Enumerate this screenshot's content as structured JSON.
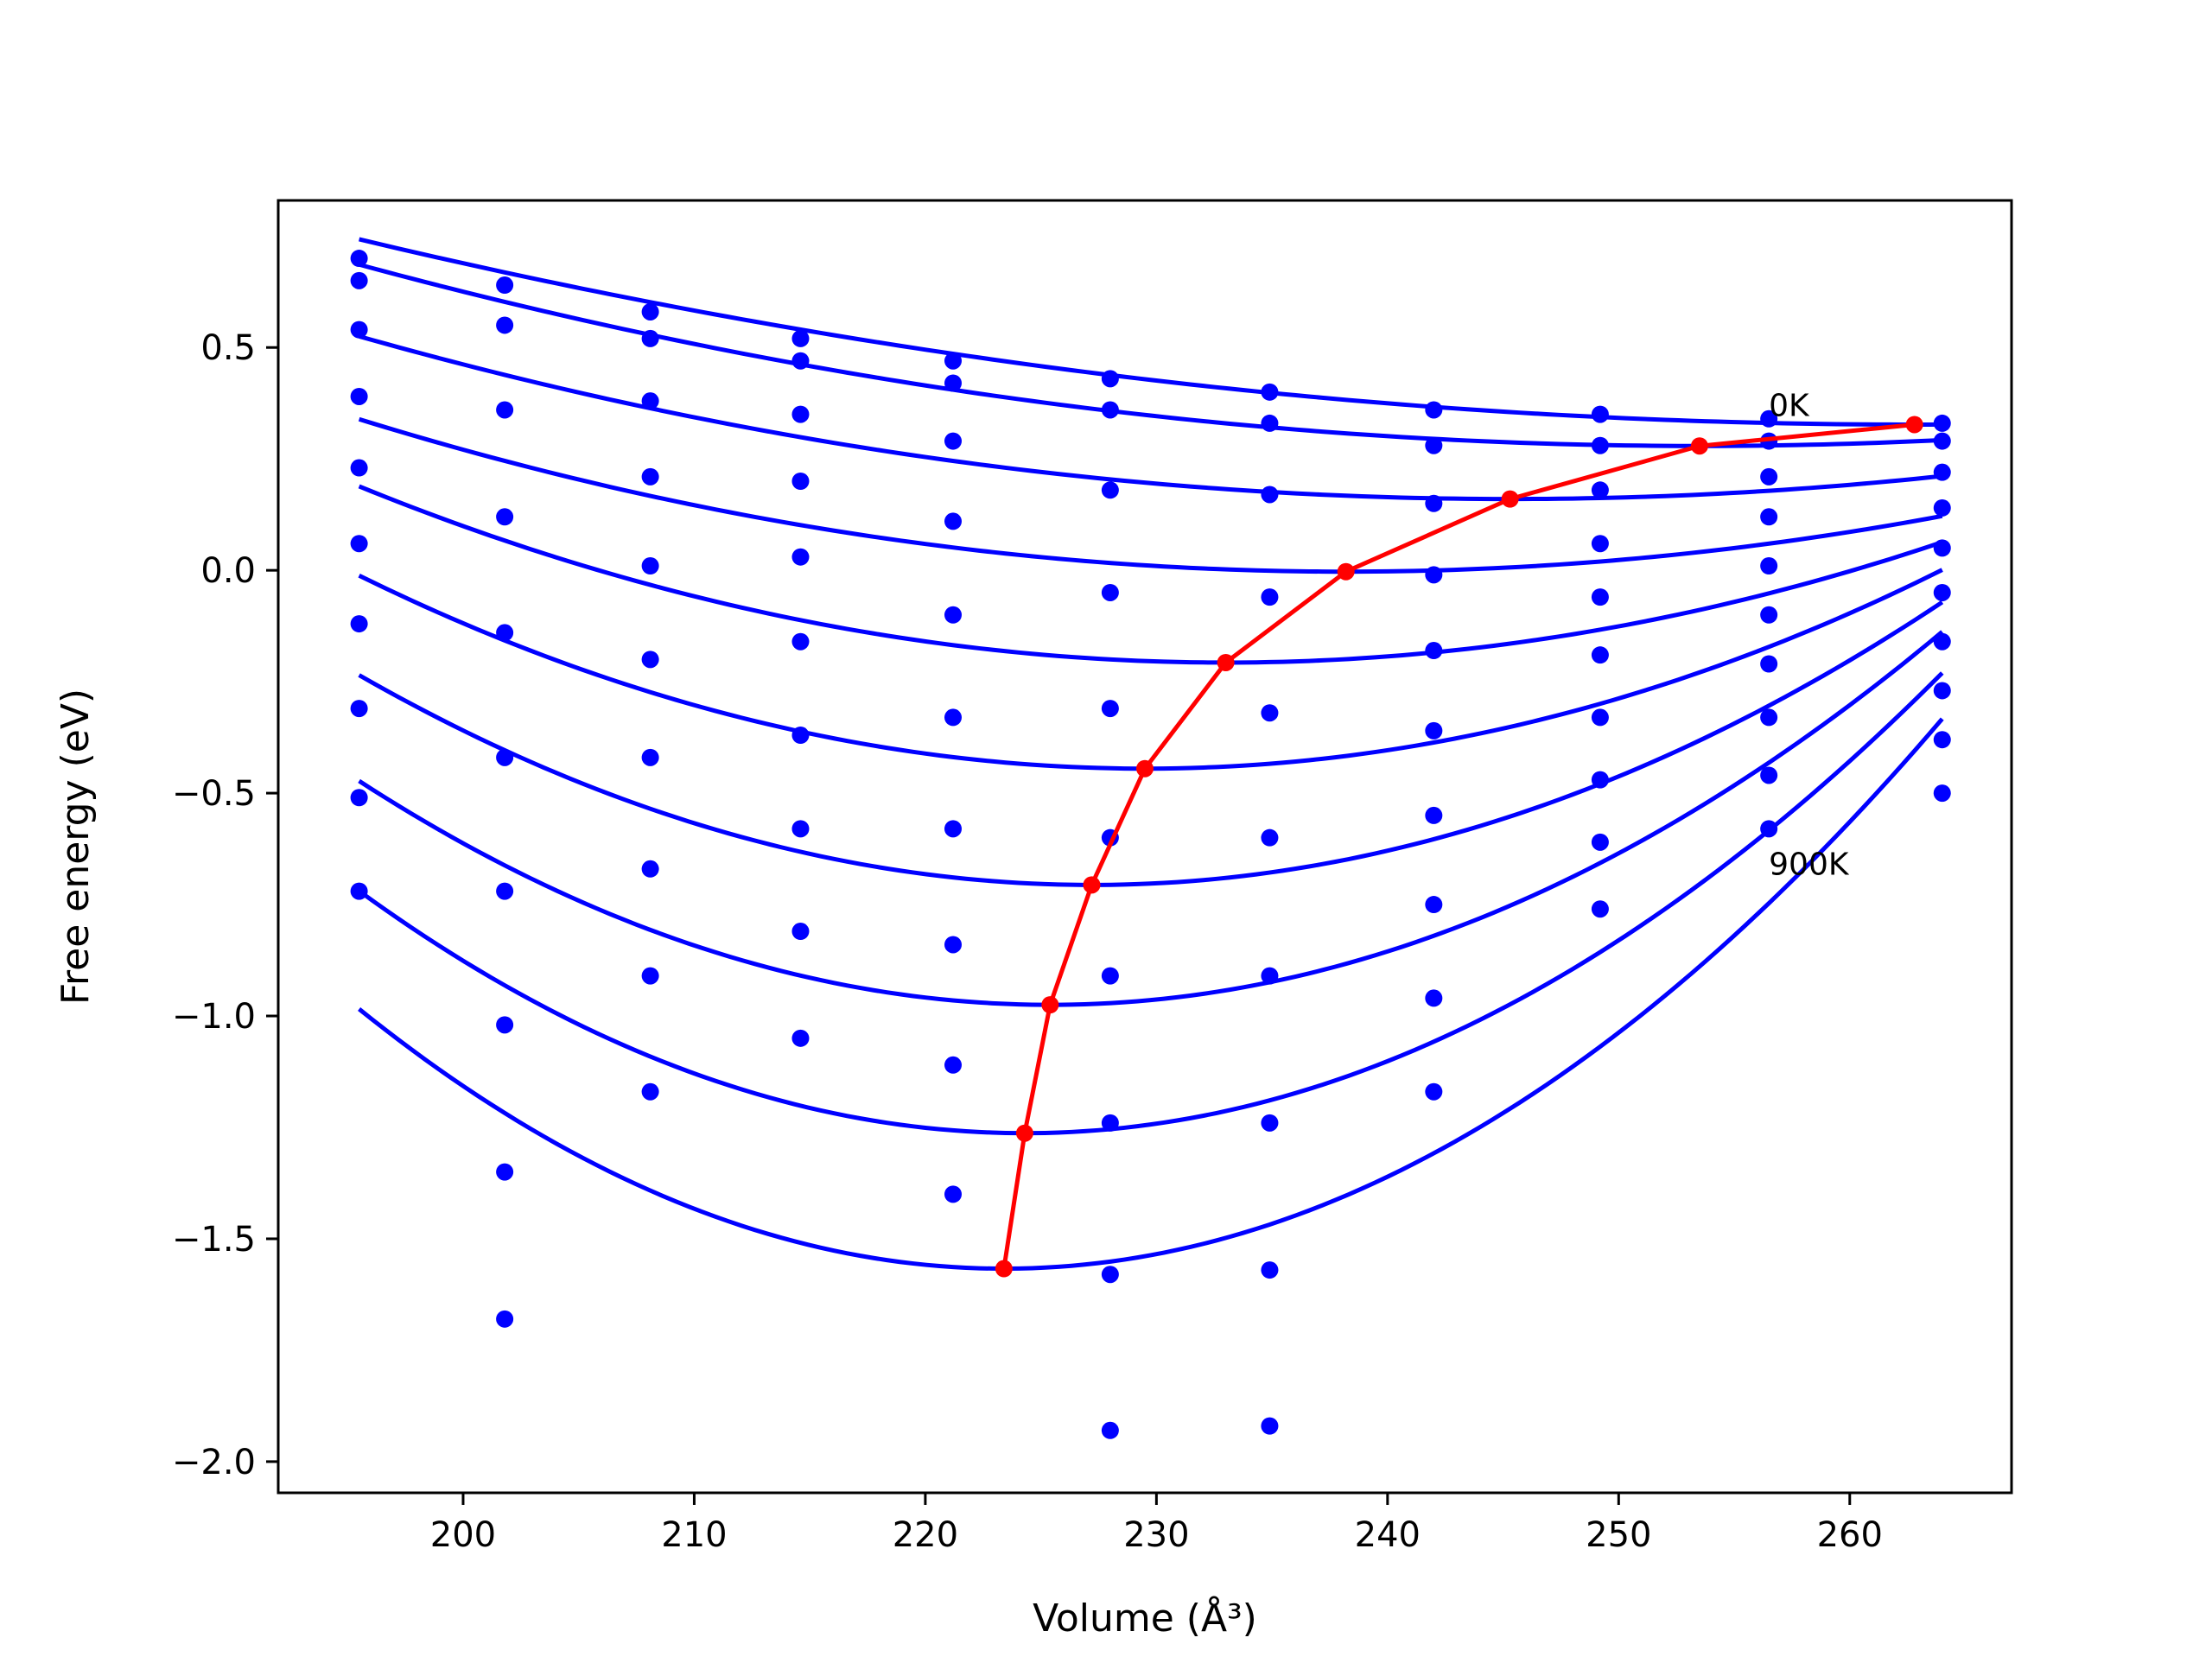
{
  "chart_data": {
    "type": "line",
    "xlabel": "Volume (Å³)",
    "ylabel": "Free energy (eV)",
    "xlim": [
      192,
      267
    ],
    "ylim": [
      -2.07,
      0.83
    ],
    "grid": false,
    "x_ticks": [
      {
        "value": 200,
        "label": "200"
      },
      {
        "value": 210,
        "label": "210"
      },
      {
        "value": 220,
        "label": "220"
      },
      {
        "value": 230,
        "label": "230"
      },
      {
        "value": 240,
        "label": "240"
      },
      {
        "value": 250,
        "label": "250"
      },
      {
        "value": 260,
        "label": "260"
      }
    ],
    "y_ticks": [
      {
        "value": 0.5,
        "label": "0.5"
      },
      {
        "value": 0.0,
        "label": "0.0"
      },
      {
        "value": -0.5,
        "label": "−0.5"
      },
      {
        "value": -1.0,
        "label": "−1.0"
      },
      {
        "value": -1.5,
        "label": "−1.5"
      },
      {
        "value": -2.0,
        "label": "−2.0"
      }
    ],
    "annotations": [
      {
        "text": "0K",
        "x": 256.5,
        "y": 0.37
      },
      {
        "text": "900K",
        "x": 256.5,
        "y": -0.66
      }
    ],
    "colors": {
      "fits": "#0000ff",
      "points": "#0000ff",
      "minimum_path": "#ff0000"
    },
    "volumes": [
      195.5,
      201.8,
      208.1,
      214.6,
      221.2,
      228.0,
      234.9,
      242.0,
      249.2,
      256.5,
      264.0
    ],
    "point_series": [
      [
        0.7,
        0.64,
        0.58,
        0.52,
        0.47,
        0.43,
        0.4,
        0.36,
        0.35,
        0.34,
        0.33
      ],
      [
        0.65,
        0.55,
        0.52,
        0.47,
        0.42,
        0.36,
        0.33,
        0.28,
        0.28,
        0.29,
        0.29
      ],
      [
        0.54,
        0.36,
        0.38,
        0.35,
        0.29,
        0.18,
        0.17,
        0.15,
        0.18,
        0.21,
        0.22
      ],
      [
        0.39,
        0.12,
        0.21,
        0.2,
        0.11,
        -0.05,
        -0.06,
        -0.01,
        0.06,
        0.12,
        0.14
      ],
      [
        0.23,
        -0.14,
        0.01,
        0.03,
        -0.1,
        -0.31,
        -0.32,
        -0.18,
        -0.06,
        0.01,
        0.05
      ],
      [
        0.06,
        -0.42,
        -0.2,
        -0.16,
        -0.33,
        -0.6,
        -0.6,
        -0.36,
        -0.19,
        -0.1,
        -0.05
      ],
      [
        -0.12,
        -0.72,
        -0.42,
        -0.37,
        -0.58,
        -0.91,
        -0.91,
        -0.55,
        -0.33,
        -0.21,
        -0.16
      ],
      [
        -0.31,
        -1.02,
        -0.67,
        -0.58,
        -0.84,
        -1.24,
        -1.24,
        -0.75,
        -0.47,
        -0.33,
        -0.27
      ],
      [
        -0.51,
        -1.35,
        -0.91,
        -0.81,
        -1.11,
        -1.58,
        -1.57,
        -0.96,
        -0.61,
        -0.46,
        -0.38
      ],
      [
        -0.72,
        -1.68,
        -1.17,
        -1.05,
        -1.4,
        -1.93,
        -1.92,
        -1.17,
        -0.76,
        -0.58,
        -0.5
      ]
    ],
    "fit_curves": [
      {
        "v0": 262.8,
        "e0": 0.327,
        "a": 9.18e-05
      },
      {
        "v0": 253.5,
        "e0": 0.279,
        "a": 0.000121
      },
      {
        "v0": 245.3,
        "e0": 0.16,
        "a": 0.0001472
      },
      {
        "v0": 238.2,
        "e0": -0.003,
        "a": 0.0001876
      },
      {
        "v0": 233.0,
        "e0": -0.207,
        "a": 0.0002812
      },
      {
        "v0": 229.5,
        "e0": -0.445,
        "a": 0.0003748
      },
      {
        "v0": 227.2,
        "e0": -0.706,
        "a": 0.0004685
      },
      {
        "v0": 225.4,
        "e0": -0.975,
        "a": 0.0005618
      },
      {
        "v0": 224.3,
        "e0": -1.263,
        "a": 0.0006552
      },
      {
        "v0": 223.4,
        "e0": -1.567,
        "a": 0.0007484
      }
    ],
    "minimum_path": {
      "x": [
        262.8,
        253.5,
        245.3,
        238.2,
        233.0,
        229.5,
        227.2,
        225.4,
        224.3,
        223.4
      ],
      "y": [
        0.327,
        0.279,
        0.16,
        -0.003,
        -0.207,
        -0.445,
        -0.706,
        -0.975,
        -1.263,
        -1.567
      ]
    }
  }
}
